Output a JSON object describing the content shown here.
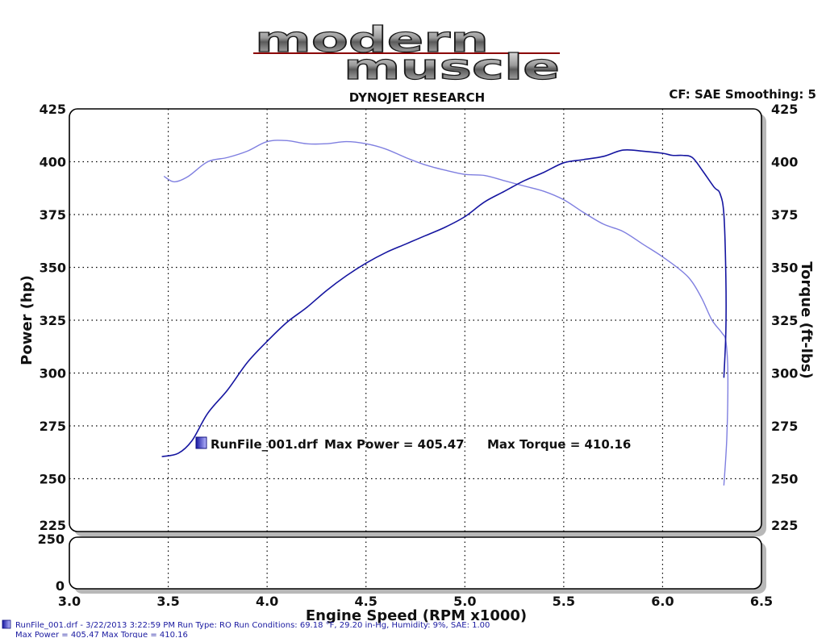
{
  "logo": {
    "line1": "modern",
    "line2": "muscle"
  },
  "header": {
    "title": "DYNOJET RESEARCH",
    "cf_label": "CF: SAE  Smoothing: 5"
  },
  "legend": {
    "file": "RunFile_001.drf",
    "max_power_label": "Max Power = 405.47",
    "max_torque_label": "Max Torque = 410.16"
  },
  "footer": {
    "line1": "RunFile_001.drf - 3/22/2013 3:22:59 PM  Run Type: RO  Run Conditions: 69.18 °F, 29.20 in-Hg,  Humidity:  9%, SAE: 1.00",
    "line2": "Max Power = 405.47  Max Torque = 410.16"
  },
  "colors": {
    "power": "#1515a0",
    "torque": "#7f7fe0",
    "grid": "#000000"
  },
  "chart_data": [
    {
      "type": "line",
      "title": "DYNOJET RESEARCH",
      "xlabel": "Engine Speed (RPM x1000)",
      "ylabel": "Power (hp)",
      "y2label": "Torque (ft-lbs)",
      "xlim": [
        3.0,
        6.5
      ],
      "ylim": [
        225,
        425
      ],
      "y2lim": [
        225,
        425
      ],
      "xticks": [
        "3.0",
        "3.5",
        "4.0",
        "4.5",
        "5.0",
        "5.5",
        "6.0",
        "6.5"
      ],
      "yticks": [
        "225",
        "250",
        "275",
        "300",
        "325",
        "350",
        "375",
        "400",
        "425"
      ],
      "y2ticks": [
        "225",
        "250",
        "275",
        "300",
        "325",
        "350",
        "375",
        "400",
        "425"
      ],
      "grid": true,
      "legend_position": "bottom-left",
      "series": [
        {
          "name": "Power",
          "color": "#1515a0",
          "points": [
            [
              3.47,
              260.5
            ],
            [
              3.55,
              262
            ],
            [
              3.62,
              268
            ],
            [
              3.7,
              281
            ],
            [
              3.8,
              292
            ],
            [
              3.9,
              305
            ],
            [
              4.0,
              315
            ],
            [
              4.1,
              324
            ],
            [
              4.2,
              331
            ],
            [
              4.3,
              339
            ],
            [
              4.4,
              346
            ],
            [
              4.5,
              352
            ],
            [
              4.6,
              357
            ],
            [
              4.7,
              361
            ],
            [
              4.8,
              365
            ],
            [
              4.9,
              369
            ],
            [
              5.0,
              374
            ],
            [
              5.1,
              381
            ],
            [
              5.2,
              386
            ],
            [
              5.3,
              391
            ],
            [
              5.4,
              395
            ],
            [
              5.5,
              399.5
            ],
            [
              5.6,
              401
            ],
            [
              5.7,
              402.5
            ],
            [
              5.8,
              405.5
            ],
            [
              5.9,
              405
            ],
            [
              6.0,
              404
            ],
            [
              6.05,
              403
            ],
            [
              6.1,
              403
            ],
            [
              6.15,
              402
            ],
            [
              6.2,
              396
            ],
            [
              6.26,
              388
            ],
            [
              6.29,
              385
            ],
            [
              6.31,
              375
            ],
            [
              6.32,
              345
            ],
            [
              6.32,
              320
            ],
            [
              6.31,
              298
            ]
          ]
        },
        {
          "name": "Torque",
          "color": "#7f7fe0",
          "points": [
            [
              3.48,
              393
            ],
            [
              3.53,
              390.5
            ],
            [
              3.6,
              393
            ],
            [
              3.7,
              400
            ],
            [
              3.8,
              402
            ],
            [
              3.9,
              405
            ],
            [
              4.0,
              409.5
            ],
            [
              4.1,
              410
            ],
            [
              4.2,
              408.5
            ],
            [
              4.3,
              408.5
            ],
            [
              4.4,
              409.5
            ],
            [
              4.5,
              408.5
            ],
            [
              4.6,
              406
            ],
            [
              4.7,
              402
            ],
            [
              4.8,
              398.5
            ],
            [
              4.9,
              396
            ],
            [
              5.0,
              394
            ],
            [
              5.1,
              393.5
            ],
            [
              5.2,
              391
            ],
            [
              5.3,
              388.5
            ],
            [
              5.4,
              386
            ],
            [
              5.5,
              382
            ],
            [
              5.6,
              376
            ],
            [
              5.7,
              370.5
            ],
            [
              5.8,
              367
            ],
            [
              5.9,
              361
            ],
            [
              6.0,
              355
            ],
            [
              6.1,
              348
            ],
            [
              6.15,
              343
            ],
            [
              6.2,
              335
            ],
            [
              6.25,
              325
            ],
            [
              6.3,
              319
            ],
            [
              6.32,
              315
            ],
            [
              6.33,
              300
            ],
            [
              6.325,
              270
            ],
            [
              6.31,
              247
            ]
          ]
        }
      ]
    },
    {
      "type": "line",
      "xlim": [
        3.0,
        6.5
      ],
      "ylim": [
        0,
        250
      ],
      "yticks": [
        "250",
        "0"
      ],
      "grid": true,
      "series": []
    }
  ]
}
